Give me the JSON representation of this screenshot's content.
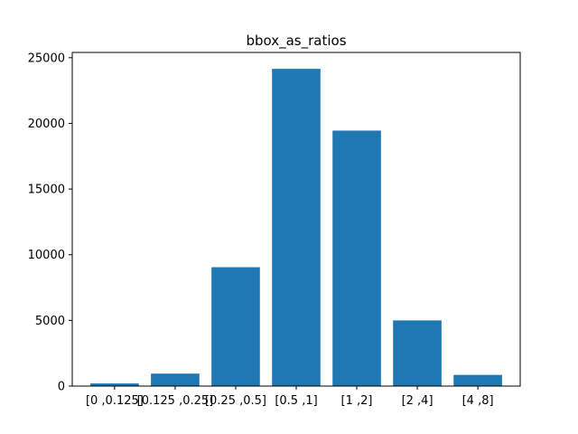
{
  "chart_data": {
    "type": "bar",
    "title": "bbox_as_ratios",
    "xlabel": "",
    "ylabel": "",
    "categories": [
      "[0 ,0.125]",
      "[0.125 ,0.25]",
      "[0.25 ,0.5]",
      "[0.5 ,1]",
      "[1 ,2]",
      "[2 ,4]",
      "[4 ,8]"
    ],
    "values": [
      200,
      950,
      9050,
      24150,
      19450,
      5000,
      850
    ],
    "ylim": [
      0,
      25400
    ],
    "yticks": [
      0,
      5000,
      10000,
      15000,
      20000,
      25000
    ],
    "grid": false,
    "bar_color": "#1f77b4"
  }
}
